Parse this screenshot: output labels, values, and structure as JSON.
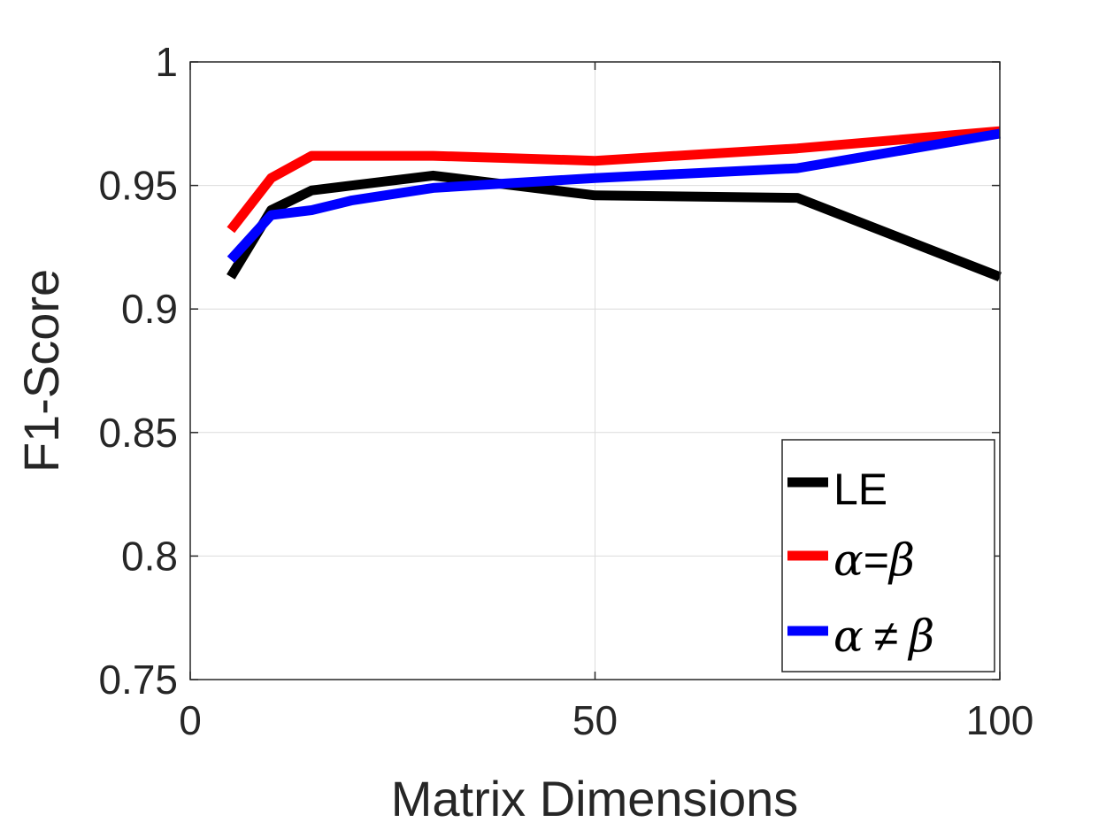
{
  "chart_data": {
    "type": "line",
    "title": "",
    "xlabel": "Matrix Dimensions",
    "ylabel": "F1-Score",
    "xlim": [
      0,
      100
    ],
    "ylim": [
      0.75,
      1
    ],
    "xticks": [
      0,
      50,
      100
    ],
    "xtick_labels": [
      "0",
      "50",
      "100"
    ],
    "yticks": [
      0.75,
      0.8,
      0.85,
      0.9,
      0.95,
      1
    ],
    "ytick_labels": [
      "0.75",
      "0.8",
      "0.85",
      "0.9",
      "0.95",
      "1"
    ],
    "grid": true,
    "legend_position": "bottom-right",
    "series": [
      {
        "name": "LE",
        "label_text": "LE",
        "color": "#000000",
        "x": [
          5,
          10,
          15,
          20,
          30,
          40,
          50,
          75,
          100
        ],
        "y": [
          0.913,
          0.94,
          0.948,
          0.95,
          0.954,
          0.95,
          0.946,
          0.945,
          0.913
        ]
      },
      {
        "name": "alpha=beta",
        "label_math_a": "α",
        "label_op": "=",
        "label_math_b": "β",
        "color": "#ff0000",
        "x": [
          5,
          10,
          15,
          20,
          30,
          40,
          50,
          75,
          100
        ],
        "y": [
          0.932,
          0.953,
          0.962,
          0.962,
          0.962,
          0.961,
          0.96,
          0.965,
          0.972
        ]
      },
      {
        "name": "alpha!=beta",
        "label_math_a": "α",
        "label_op": "≠",
        "label_math_b": "β",
        "color": "#0000ff",
        "x": [
          5,
          10,
          15,
          20,
          30,
          40,
          50,
          75,
          100
        ],
        "y": [
          0.92,
          0.938,
          0.94,
          0.944,
          0.949,
          0.951,
          0.953,
          0.957,
          0.971
        ]
      }
    ]
  }
}
